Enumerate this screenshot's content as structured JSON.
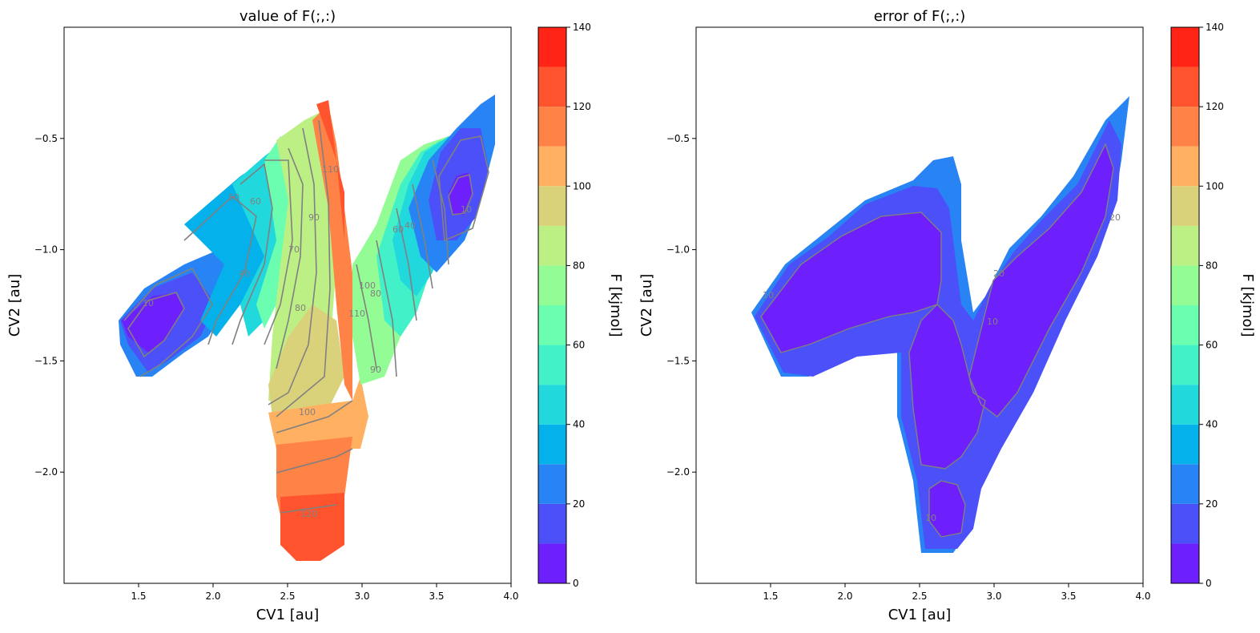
{
  "chart_data": [
    {
      "type": "contour",
      "title": "value of F(;,:)",
      "xlabel": "CV1 [au]",
      "ylabel": "CV2 [au]",
      "xlim": [
        1.0,
        4.0
      ],
      "ylim": [
        -2.5,
        0.0
      ],
      "xticks": [
        "1.5",
        "2.0",
        "2.5",
        "3.0",
        "3.5",
        "4.0"
      ],
      "yticks": [
        "-0.5",
        "-1.0",
        "-1.5",
        "-2.0"
      ],
      "colorbar": {
        "label": "F [kjmol]",
        "range": [
          0,
          140
        ],
        "ticks": [
          "0",
          "20",
          "40",
          "60",
          "80",
          "100",
          "120",
          "140"
        ],
        "levels": [
          0,
          10,
          20,
          30,
          40,
          50,
          60,
          70,
          80,
          90,
          100,
          110,
          120,
          130,
          140
        ],
        "colors": [
          "#6e20fc",
          "#4b50f9",
          "#2884f4",
          "#04b1ea",
          "#21d8dd",
          "#43f1c9",
          "#6bfdb0",
          "#94fc94",
          "#bdf084",
          "#dad27b",
          "#ffb060",
          "#ff8247",
          "#ff542d",
          "#ff2415"
        ]
      },
      "contour_labels": [
        "10",
        "20",
        "30",
        "40",
        "50",
        "60",
        "70",
        "80",
        "90",
        "100",
        "110",
        "120"
      ],
      "minima": [
        {
          "cv1": 1.6,
          "cv2": -1.35,
          "F": 0
        },
        {
          "cv1": 3.65,
          "cv2": -0.75,
          "F": 0
        }
      ],
      "maximum_region": {
        "cv1": 2.7,
        "cv2": -2.3,
        "F": 130
      }
    },
    {
      "type": "contour",
      "title": "error of F(;,:)",
      "xlabel": "CV1 [au]",
      "ylabel": "CV2 [au]",
      "xlim": [
        1.0,
        4.0
      ],
      "ylim": [
        -2.5,
        0.0
      ],
      "xticks": [
        "1.5",
        "2.0",
        "2.5",
        "3.0",
        "3.5",
        "4.0"
      ],
      "yticks": [
        "-0.5",
        "-1.0",
        "-1.5",
        "-2.0"
      ],
      "colorbar": {
        "label": "F [kjmol]",
        "range": [
          0,
          140
        ],
        "ticks": [
          "0",
          "20",
          "40",
          "60",
          "80",
          "100",
          "120",
          "140"
        ]
      },
      "contour_labels": [
        "10",
        "20"
      ],
      "error_range": [
        0,
        30
      ]
    }
  ]
}
